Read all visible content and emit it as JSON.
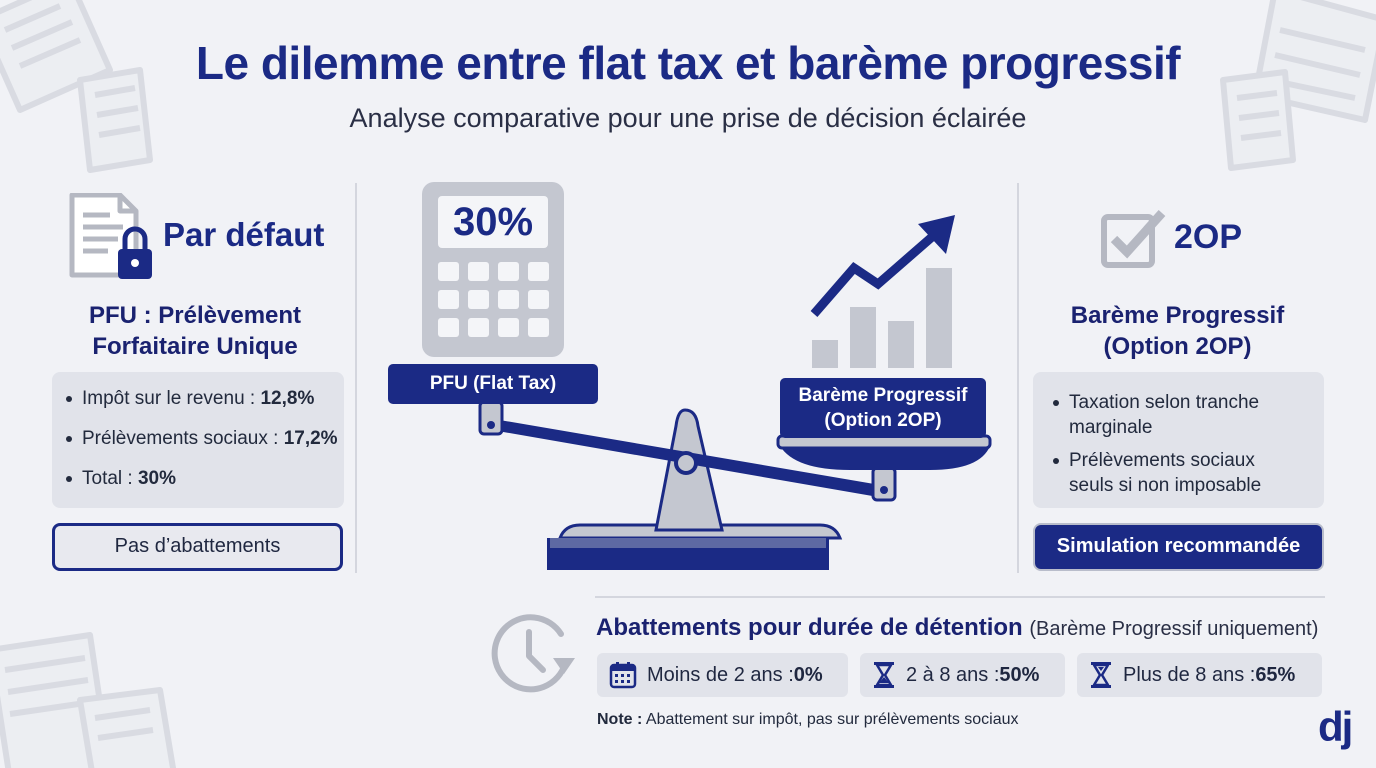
{
  "header": {
    "title": "Le dilemme entre flat tax et barème progressif",
    "subtitle": "Analyse comparative pour une prise de décision éclairée"
  },
  "left": {
    "heading": "Par défaut",
    "title_line1": "PFU : Prélèvement",
    "title_line2": "Forfaitaire Unique",
    "items": [
      {
        "label": "Impôt sur le revenu : ",
        "value": "12,8%"
      },
      {
        "label": "Prélèvements sociaux : ",
        "value": "17,2%"
      },
      {
        "label": "Total : ",
        "value": "30%"
      }
    ],
    "button": "Pas d’abattements"
  },
  "center": {
    "calculator_value": "30%",
    "left_pan_label": "PFU (Flat Tax)",
    "right_pan_label_line1": "Barème Progressif",
    "right_pan_label_line2": "(Option 2OP)"
  },
  "right": {
    "heading": "2OP",
    "title_line1": "Barème Progressif",
    "title_line2": "(Option 2OP)",
    "items": [
      {
        "line1": "Taxation selon tranche",
        "line2": "marginale"
      },
      {
        "line1": "Prélèvements sociaux",
        "line2": "seuls si non imposable"
      }
    ],
    "button": "Simulation recommandée"
  },
  "bottom": {
    "heading": "Abattements pour durée de détention",
    "heading_note": "(Barème Progressif uniquement)",
    "chips": [
      {
        "label": "Moins de 2 ans : ",
        "value": "0%",
        "icon": "calendar-icon"
      },
      {
        "label": "2 à 8 ans : ",
        "value": "50%",
        "icon": "hourglass-icon"
      },
      {
        "label": "Plus de 8 ans : ",
        "value": "65%",
        "icon": "hourglass-icon"
      }
    ],
    "note_label": "Note :",
    "note_text": " Abattement sur impôt, pas sur prélèvements sociaux"
  },
  "logo": {
    "text": "dj"
  },
  "colors": {
    "primary": "#1b2a85",
    "background": "#f1f2f6",
    "box": "#e1e3ea",
    "icon_grey": "#b5b8c2"
  }
}
